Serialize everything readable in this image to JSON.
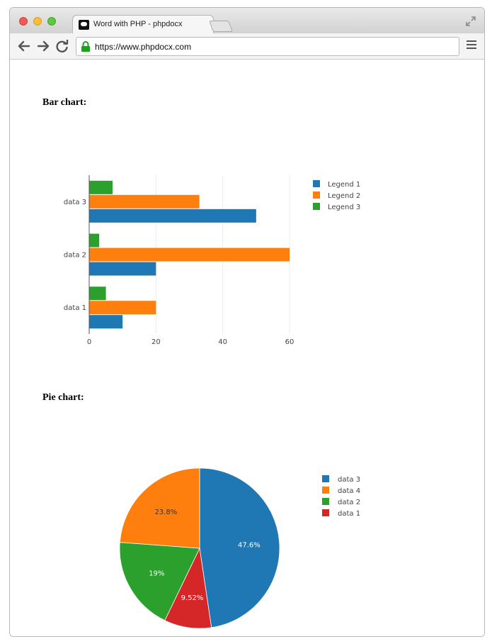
{
  "browser": {
    "tab_title": "Word with PHP - phpdocx",
    "url": "https://www.phpdocx.com"
  },
  "sections": {
    "bar_title": "Bar chart:",
    "pie_title": "Pie chart:"
  },
  "chart_data": [
    {
      "type": "bar",
      "orientation": "horizontal",
      "categories": [
        "data 1",
        "data 2",
        "data 3"
      ],
      "series": [
        {
          "name": "Legend 1",
          "color": "#1f77b4",
          "values": [
            10,
            20,
            50
          ]
        },
        {
          "name": "Legend 2",
          "color": "#ff7f0e",
          "values": [
            20,
            60,
            33
          ]
        },
        {
          "name": "Legend 3",
          "color": "#2ca02c",
          "values": [
            5,
            3,
            7
          ]
        }
      ],
      "xticks": [
        "0",
        "20",
        "40",
        "60"
      ],
      "xlim": [
        0,
        60
      ],
      "grid": true,
      "legend_position": "right"
    },
    {
      "type": "pie",
      "slices": [
        {
          "label": "data 3",
          "value": 47.6,
          "text": "47.6%",
          "color": "#1f77b4"
        },
        {
          "label": "data 4",
          "value": 23.8,
          "text": "23.8%",
          "color": "#ff7f0e"
        },
        {
          "label": "data 2",
          "value": 19,
          "text": "19%",
          "color": "#2ca02c"
        },
        {
          "label": "data 1",
          "value": 9.52,
          "text": "9.52%",
          "color": "#d62728"
        }
      ],
      "slice_draw_order": [
        "data 3",
        "data 1",
        "data 2",
        "data 4"
      ],
      "legend_position": "right"
    }
  ]
}
